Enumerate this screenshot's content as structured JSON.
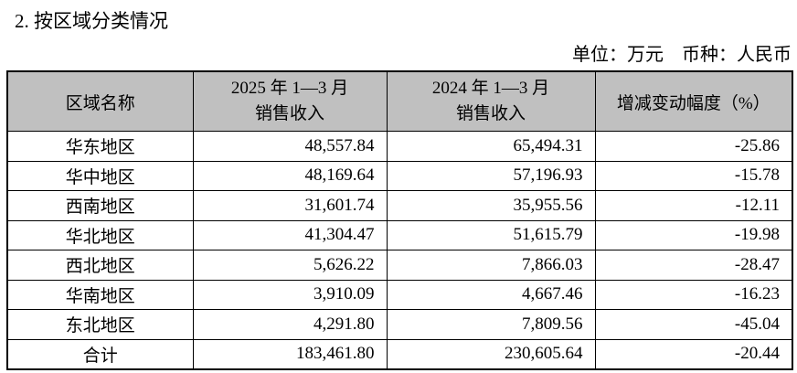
{
  "section": {
    "title": "2. 按区域分类情况",
    "unit_note": "单位：万元　币种：人民币"
  },
  "table": {
    "headers": [
      "区域名称",
      "2025 年 1—3 月\n销售收入",
      "2024 年 1—3 月\n销售收入",
      "增减变动幅度（%）"
    ],
    "rows": [
      {
        "region": "华东地区",
        "rev_2025": "48,557.84",
        "rev_2024": "65,494.31",
        "change_pct": "-25.86"
      },
      {
        "region": "华中地区",
        "rev_2025": "48,169.64",
        "rev_2024": "57,196.93",
        "change_pct": "-15.78"
      },
      {
        "region": "西南地区",
        "rev_2025": "31,601.74",
        "rev_2024": "35,955.56",
        "change_pct": "-12.11"
      },
      {
        "region": "华北地区",
        "rev_2025": "41,304.47",
        "rev_2024": "51,615.79",
        "change_pct": "-19.98"
      },
      {
        "region": "西北地区",
        "rev_2025": "5,626.22",
        "rev_2024": "7,866.03",
        "change_pct": "-28.47"
      },
      {
        "region": "华南地区",
        "rev_2025": "3,910.09",
        "rev_2024": "4,667.46",
        "change_pct": "-16.23"
      },
      {
        "region": "东北地区",
        "rev_2025": "4,291.80",
        "rev_2024": "7,809.56",
        "change_pct": "-45.04"
      },
      {
        "region": "合计",
        "rev_2025": "183,461.80",
        "rev_2024": "230,605.64",
        "change_pct": "-20.44"
      }
    ],
    "colors": {
      "header_bg": "#c0c0c0",
      "border": "#000000",
      "text": "#000000"
    }
  }
}
